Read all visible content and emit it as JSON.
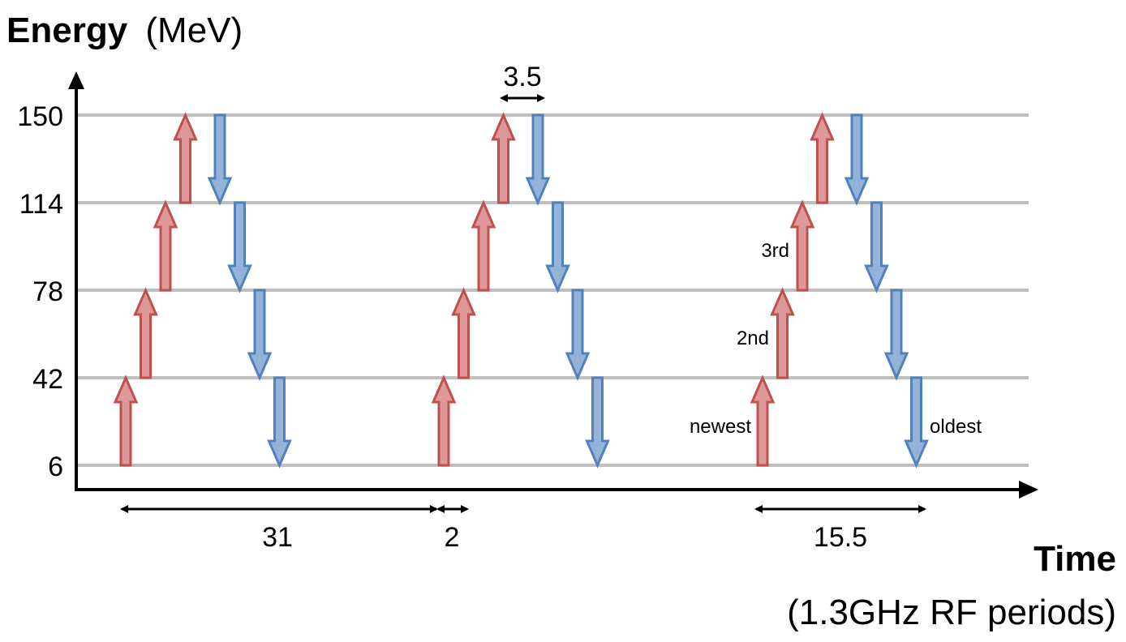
{
  "y_axis": {
    "title_bold": "Energy",
    "title_unit": "(MeV)"
  },
  "x_axis": {
    "title_bold": "Time",
    "title_unit": "(1.3GHz RF periods)"
  },
  "levels": [
    "150",
    "114",
    "78",
    "42",
    "6"
  ],
  "dimensions": {
    "bunch_spacing": "3.5",
    "train_length": "31",
    "gap": "2",
    "half_train": "15.5"
  },
  "generation_labels": {
    "newest": "newest",
    "second": "2nd",
    "third": "3rd",
    "oldest": "oldest"
  },
  "colors": {
    "accelerating_fill": "#dd9999",
    "accelerating_stroke": "#c0504d",
    "decelerating_fill": "#94b3d9",
    "decelerating_stroke": "#4f81bd",
    "level_line": "#bfbfbf",
    "generation_label": "#4bacc6"
  }
}
